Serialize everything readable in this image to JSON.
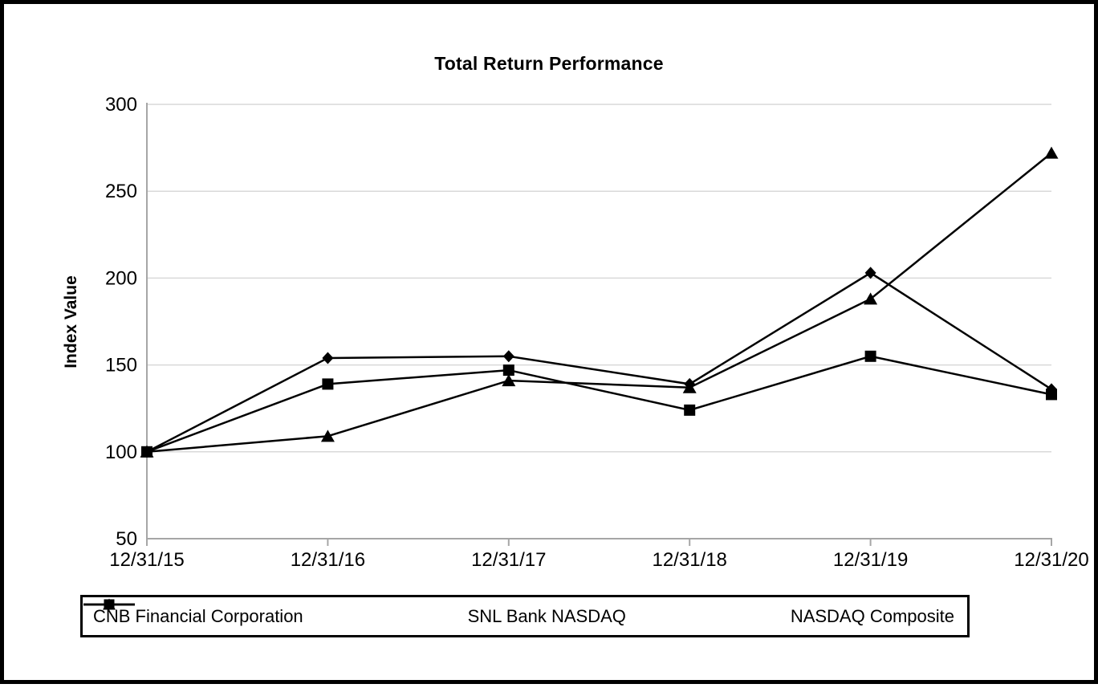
{
  "title": "Total Return Performance",
  "chart_data": {
    "type": "line",
    "title": "Total Return Performance",
    "xlabel": "",
    "ylabel": "Index Value",
    "categories": [
      "12/31/15",
      "12/31/16",
      "12/31/17",
      "12/31/18",
      "12/31/19",
      "12/31/20"
    ],
    "y_ticks": [
      50,
      100,
      150,
      200,
      250,
      300
    ],
    "ylim": [
      50,
      300
    ],
    "grid": "horizontal-only",
    "legend_position": "bottom-boxed",
    "series": [
      {
        "name": "CNB Financial Corporation",
        "marker": "diamond",
        "color": "#000000",
        "values": [
          100,
          154,
          155,
          139,
          203,
          136
        ]
      },
      {
        "name": "SNL Bank NASDAQ",
        "marker": "square",
        "color": "#000000",
        "values": [
          100,
          139,
          147,
          124,
          155,
          133
        ]
      },
      {
        "name": "NASDAQ Composite",
        "marker": "triangle",
        "color": "#000000",
        "values": [
          100,
          109,
          141,
          137,
          188,
          272
        ]
      }
    ]
  },
  "colors": {
    "series": "#000000",
    "axis": "#a6a6a6",
    "gridline": "#d9d9d9",
    "background": "#ffffff",
    "frame_border": "#000000",
    "legend_border": "#000000"
  }
}
